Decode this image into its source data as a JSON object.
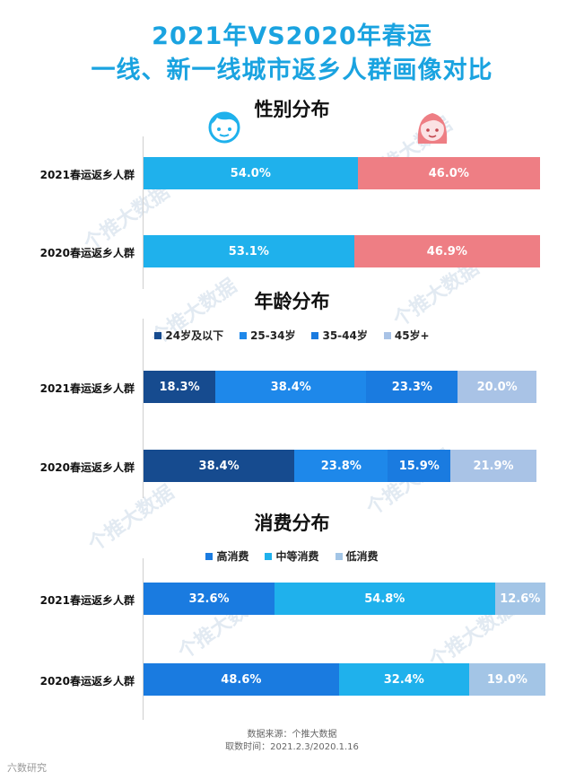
{
  "title_line1": "2021年VS2020年春运",
  "title_line2": "一线、新一线城市返乡人群画像对比",
  "watermark": "个推大数据",
  "corner_logo": "六数研究",
  "source_line1": "数据来源：个推大数据",
  "source_line2": "取数时间：2021.2.3/2020.1.16",
  "colors": {
    "title": "#1aa3e0",
    "male": "#1fb1ec",
    "female": "#ee7e84",
    "age1": "#164b8f",
    "age2": "#1e88ea",
    "age3": "#1a7be0",
    "age4": "#a9c3e6",
    "high": "#1a7be0",
    "mid": "#1fb1ec",
    "low": "#a3c5e6"
  },
  "icons": {
    "male": "boy-face-icon",
    "female": "girl-face-icon",
    "watermark": "mascot-icon"
  },
  "chart_data": [
    {
      "type": "bar",
      "title": "性别分布",
      "stacked": true,
      "orientation": "horizontal",
      "categories": [
        "2021春运返乡人群",
        "2020春运返乡人群"
      ],
      "series": [
        {
          "values": [
            54.0,
            53.1
          ],
          "labels": [
            "54.0%",
            "53.1%"
          ]
        },
        {
          "values": [
            46.0,
            46.9
          ],
          "labels": [
            "46.0%",
            "46.9%"
          ]
        }
      ]
    },
    {
      "type": "bar",
      "title": "年龄分布",
      "stacked": true,
      "orientation": "horizontal",
      "legend_position": "top",
      "categories": [
        "2021春运返乡人群",
        "2020春运返乡人群"
      ],
      "series": [
        {
          "name": "24岁及以下",
          "values": [
            18.3,
            38.4
          ],
          "labels": [
            "18.3%",
            "38.4%"
          ]
        },
        {
          "name": "25-34岁",
          "values": [
            38.4,
            23.8
          ],
          "labels": [
            "38.4%",
            "23.8%"
          ]
        },
        {
          "name": "35-44岁",
          "values": [
            23.3,
            15.9
          ],
          "labels": [
            "23.3%",
            "15.9%"
          ]
        },
        {
          "name": "45岁+",
          "values": [
            20.0,
            21.9
          ],
          "labels": [
            "20.0%",
            "21.9%"
          ]
        }
      ]
    },
    {
      "type": "bar",
      "title": "消费分布",
      "stacked": true,
      "orientation": "horizontal",
      "legend_position": "top",
      "categories": [
        "2021春运返乡人群",
        "2020春运返乡人群"
      ],
      "series": [
        {
          "name": "高消费",
          "values": [
            32.6,
            48.6
          ],
          "labels": [
            "32.6%",
            "48.6%"
          ]
        },
        {
          "name": "中等消费",
          "values": [
            54.8,
            32.4
          ],
          "labels": [
            "54.8%",
            "32.4%"
          ]
        },
        {
          "name": "低消费",
          "values": [
            12.6,
            19.0
          ],
          "labels": [
            "12.6%",
            "19.0%"
          ]
        }
      ]
    }
  ]
}
